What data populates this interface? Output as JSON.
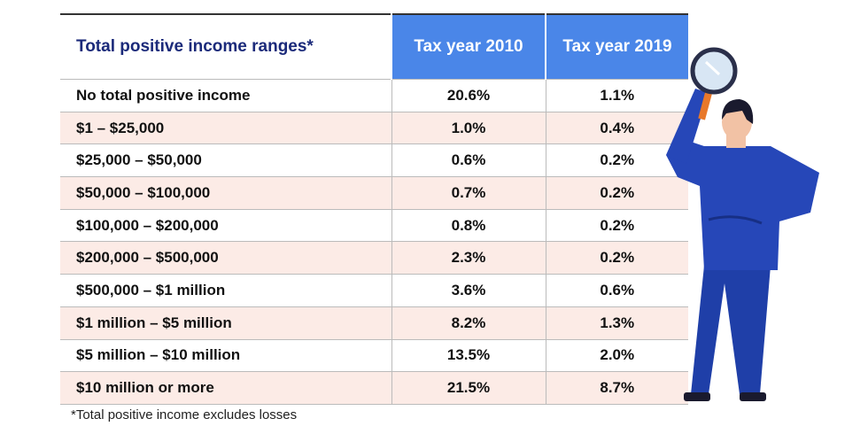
{
  "table": {
    "header": [
      "Total positive income ranges*",
      "Tax year 2010",
      "Tax year 2019"
    ],
    "rows": [
      [
        "No total positive income",
        "20.6%",
        "1.1%"
      ],
      [
        "$1 – $25,000",
        "1.0%",
        "0.4%"
      ],
      [
        "$25,000 – $50,000",
        "0.6%",
        "0.2%"
      ],
      [
        "$50,000 – $100,000",
        "0.7%",
        "0.2%"
      ],
      [
        "$100,000 – $200,000",
        "0.8%",
        "0.2%"
      ],
      [
        "$200,000 – $500,000",
        "2.3%",
        "0.2%"
      ],
      [
        "$500,000 – $1 million",
        "3.6%",
        "0.6%"
      ],
      [
        "$1 million – $5 million",
        "8.2%",
        "1.3%"
      ],
      [
        "$5 million – $10 million",
        "13.5%",
        "2.0%"
      ],
      [
        "$10 million or more",
        "21.5%",
        "8.7%"
      ]
    ]
  },
  "footnote": "*Total positive income excludes losses"
}
